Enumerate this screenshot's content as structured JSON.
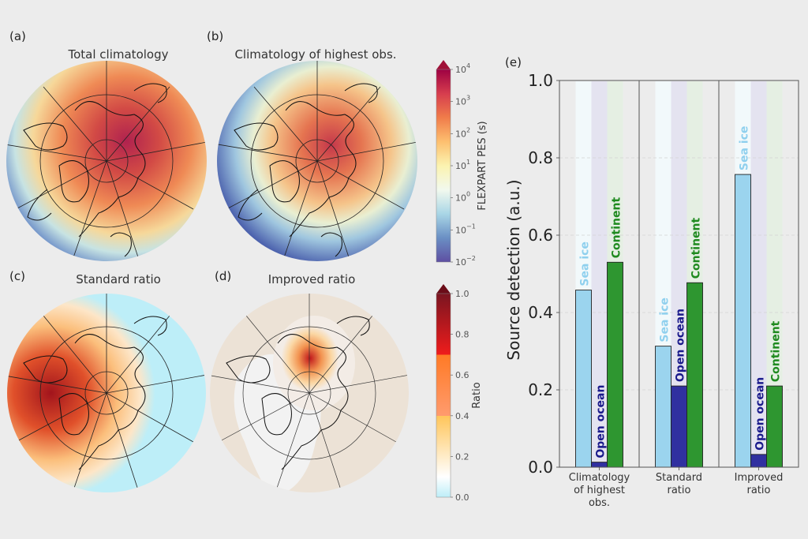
{
  "panels": {
    "a": {
      "letter": "(a)",
      "title": "Total climatology"
    },
    "b": {
      "letter": "(b)",
      "title": "Climatology of highest obs."
    },
    "c": {
      "letter": "(c)",
      "title": "Standard ratio"
    },
    "d": {
      "letter": "(d)",
      "title": "Improved ratio"
    },
    "e": {
      "letter": "(e)"
    }
  },
  "colorbars": {
    "pes": {
      "label": "FLEXPART PES (s)",
      "scale": "log",
      "ticks": [
        {
          "base": "10",
          "exp": "4"
        },
        {
          "base": "10",
          "exp": "3"
        },
        {
          "base": "10",
          "exp": "2"
        },
        {
          "base": "10",
          "exp": "1"
        },
        {
          "base": "10",
          "exp": "0"
        },
        {
          "base": "10",
          "exp": "−1"
        },
        {
          "base": "10",
          "exp": "−2"
        }
      ],
      "extend": "max",
      "colors": [
        "#5e4fa2",
        "#6a8fc4",
        "#a9d6e6",
        "#f2f9ee",
        "#fbf3b0",
        "#fdbf6f",
        "#f07c4a",
        "#d63d4e",
        "#9e0142"
      ]
    },
    "ratio": {
      "label": "Ratio",
      "ticks": [
        "1.0",
        "0.8",
        "0.6",
        "0.4",
        "0.2",
        "0.0"
      ],
      "extend": "max",
      "bands": [
        {
          "from": 0.0,
          "to": 0.1,
          "colors": [
            "#bdeef8",
            "#ffffff"
          ]
        },
        {
          "from": 0.1,
          "to": 0.4,
          "colors": [
            "#ffffff",
            "#ffc55a"
          ]
        },
        {
          "from": 0.4,
          "to": 0.7,
          "colors": [
            "#ff9b6e",
            "#ff7a25"
          ]
        },
        {
          "from": 0.7,
          "to": 1.0,
          "colors": [
            "#ef1c1c",
            "#7a1520"
          ]
        }
      ],
      "extend_color": "#6b0c18"
    }
  },
  "chart_data": {
    "type": "bar",
    "title": "",
    "xlabel": "",
    "ylabel": "Source detection (a.u.)",
    "ylim": [
      0,
      1.0
    ],
    "yticks": [
      "0.0",
      "0.2",
      "0.4",
      "0.6",
      "0.8",
      "1.0"
    ],
    "grid": true,
    "categories": [
      [
        "Climatology",
        "of highest",
        "obs."
      ],
      [
        "Standard",
        "ratio"
      ],
      [
        "Improved",
        "ratio"
      ]
    ],
    "series": [
      {
        "name": "Sea ice",
        "color": "#9bd4ee",
        "label_color": "#8fd0ee",
        "values": [
          0.458,
          0.313,
          0.757
        ]
      },
      {
        "name": "Open ocean",
        "color": "#3030a0",
        "label_color": "#1a1a8c",
        "values": [
          0.013,
          0.21,
          0.033
        ]
      },
      {
        "name": "Continent",
        "color": "#2e9630",
        "label_color": "#1f8a1f",
        "values": [
          0.53,
          0.477,
          0.21
        ]
      }
    ],
    "background_stripe_colors": [
      "#f2f9fb",
      "#e4e3f0",
      "#e5efe3"
    ],
    "legend": "none"
  }
}
